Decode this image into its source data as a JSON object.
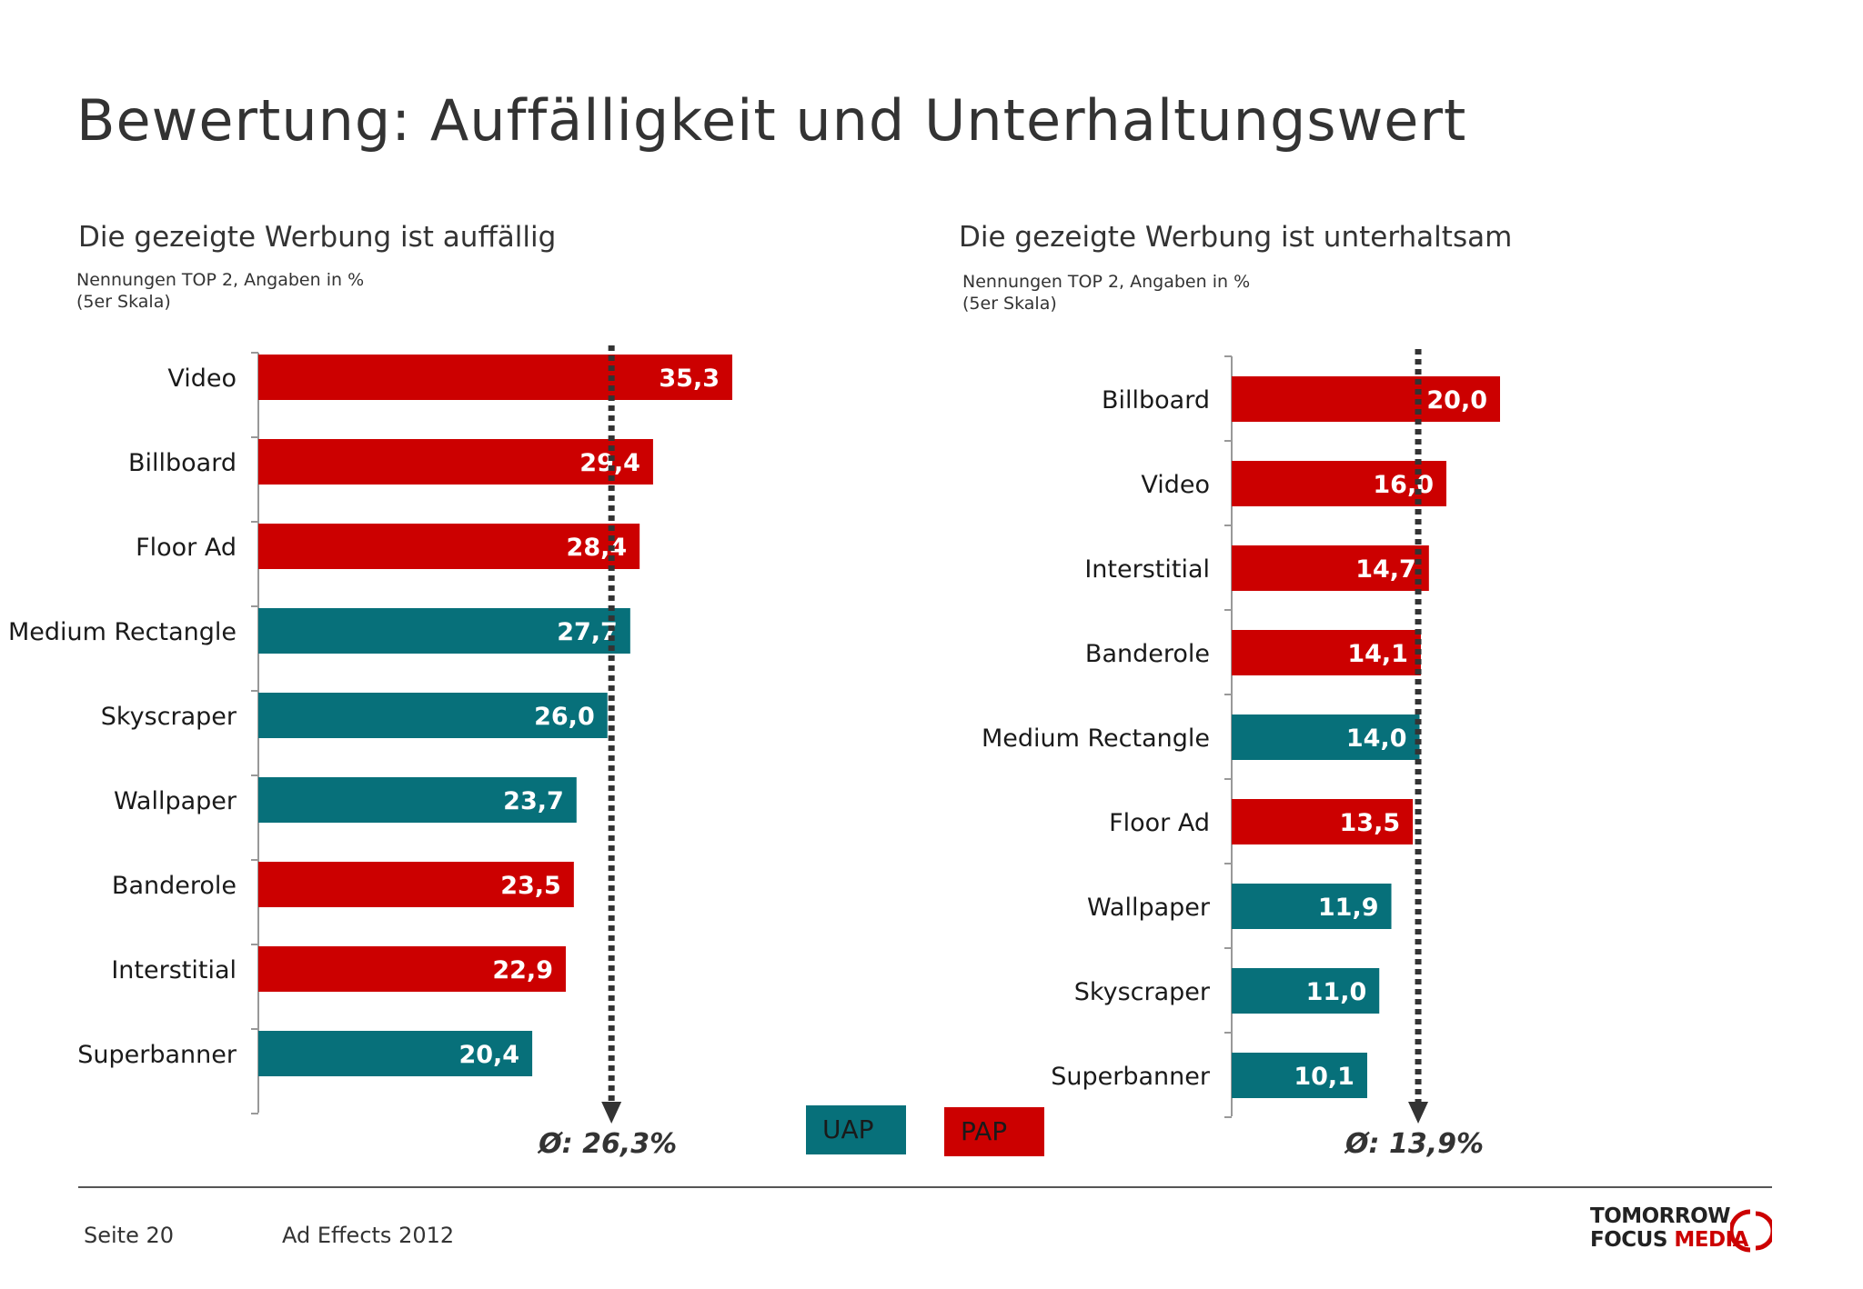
{
  "page": {
    "title": "Bewertung: Auffälligkeit und Unterhaltungswert",
    "footer_page": "Seite 20",
    "footer_study": "Ad Effects 2012",
    "logo_line1": "TOMORROW",
    "logo_line2_a": "FOCUS ",
    "logo_line2_b": "MEDIA"
  },
  "legend": {
    "uap": "UAP",
    "pap": "PAP"
  },
  "colors": {
    "uap": "#07707a",
    "pap": "#cc0000",
    "avg_line": "#333333",
    "axis": "#999999"
  },
  "chart_data": [
    {
      "type": "bar",
      "orientation": "horizontal",
      "title": "Die gezeigte Werbung ist auffällig",
      "note_line1": "Nennungen TOP 2, Angaben in %",
      "note_line2": "(5er Skala)",
      "categories": [
        "Video",
        "Billboard",
        "Floor Ad",
        "Medium Rectangle",
        "Skyscraper",
        "Wallpaper",
        "Banderole",
        "Interstitial",
        "Superbanner"
      ],
      "values": [
        35.3,
        29.4,
        28.4,
        27.7,
        26.0,
        23.7,
        23.5,
        22.9,
        20.4
      ],
      "value_labels": [
        "35,3",
        "29,4",
        "28,4",
        "27,7",
        "26,0",
        "23,7",
        "23,5",
        "22,9",
        "20,4"
      ],
      "groups": [
        "PAP",
        "PAP",
        "PAP",
        "UAP",
        "UAP",
        "UAP",
        "PAP",
        "PAP",
        "UAP"
      ],
      "average": 26.3,
      "average_label": "Ø: 26,3%",
      "xlim": [
        0,
        35.3
      ]
    },
    {
      "type": "bar",
      "orientation": "horizontal",
      "title": "Die gezeigte Werbung ist unterhaltsam",
      "note_line1": "Nennungen TOP 2, Angaben in %",
      "note_line2": "(5er Skala)",
      "categories": [
        "Billboard",
        "Video",
        "Interstitial",
        "Banderole",
        "Medium Rectangle",
        "Floor Ad",
        "Wallpaper",
        "Skyscraper",
        "Superbanner"
      ],
      "values": [
        20.0,
        16.0,
        14.7,
        14.1,
        14.0,
        13.5,
        11.9,
        11.0,
        10.1
      ],
      "value_labels": [
        "20,0",
        "16,0",
        "14,7",
        "14,1",
        "14,0",
        "13,5",
        "11,9",
        "11,0",
        "10,1"
      ],
      "groups": [
        "PAP",
        "PAP",
        "PAP",
        "PAP",
        "UAP",
        "PAP",
        "UAP",
        "UAP",
        "UAP"
      ],
      "average": 13.9,
      "average_label": "Ø: 13,9%",
      "xlim": [
        0,
        20.0
      ]
    }
  ]
}
